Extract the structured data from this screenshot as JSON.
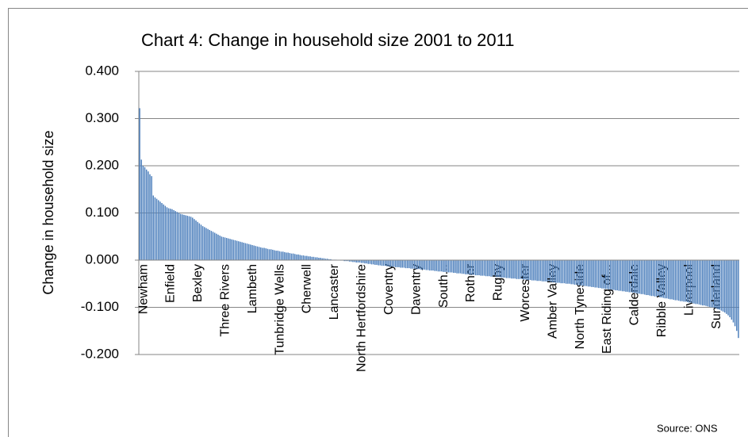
{
  "chart_data": {
    "type": "bar",
    "title": "Chart 4: Change in household size 2001 to 2011",
    "y_label": "Change in household size",
    "annotation": "Source: ONS",
    "color": "#4f81bd",
    "grid": true,
    "ylim": [
      -0.2,
      0.4
    ],
    "yticks": [
      {
        "value": 0.4,
        "label": "0.400"
      },
      {
        "value": 0.3,
        "label": "0.300"
      },
      {
        "value": 0.2,
        "label": "0.200"
      },
      {
        "value": 0.1,
        "label": "0.100"
      },
      {
        "value": 0,
        "label": "0.000"
      },
      {
        "value": -0.1,
        "label": "-0.100"
      },
      {
        "value": -0.2,
        "label": "-0.200"
      }
    ],
    "categories": [
      "Newham",
      null,
      null,
      null,
      null,
      null,
      null,
      null,
      null,
      null,
      null,
      null,
      null,
      null,
      null,
      null,
      "Enfield",
      null,
      null,
      null,
      null,
      null,
      null,
      null,
      null,
      null,
      null,
      null,
      null,
      null,
      null,
      null,
      "Bexley",
      null,
      null,
      null,
      null,
      null,
      null,
      null,
      null,
      null,
      null,
      null,
      null,
      null,
      null,
      null,
      "Three Rivers",
      null,
      null,
      null,
      null,
      null,
      null,
      null,
      null,
      null,
      null,
      null,
      null,
      null,
      null,
      null,
      "Lambeth",
      null,
      null,
      null,
      null,
      null,
      null,
      null,
      null,
      null,
      null,
      null,
      null,
      null,
      null,
      null,
      "Tunbridge Wells",
      null,
      null,
      null,
      null,
      null,
      null,
      null,
      null,
      null,
      null,
      null,
      null,
      null,
      null,
      null,
      "Cherwell",
      null,
      null,
      null,
      null,
      null,
      null,
      null,
      null,
      null,
      null,
      null,
      null,
      null,
      null,
      null,
      "Lancaster",
      null,
      null,
      null,
      null,
      null,
      null,
      null,
      null,
      null,
      null,
      null,
      null,
      null,
      null,
      null,
      "North Hertfordshire",
      null,
      null,
      null,
      null,
      null,
      null,
      null,
      null,
      null,
      null,
      null,
      null,
      null,
      null,
      null,
      "Coventry",
      null,
      null,
      null,
      null,
      null,
      null,
      null,
      null,
      null,
      null,
      null,
      null,
      null,
      null,
      null,
      "Daventry",
      null,
      null,
      null,
      null,
      null,
      null,
      null,
      null,
      null,
      null,
      null,
      null,
      null,
      null,
      null,
      "South...",
      null,
      null,
      null,
      null,
      null,
      null,
      null,
      null,
      null,
      null,
      null,
      null,
      null,
      null,
      null,
      "Rother",
      null,
      null,
      null,
      null,
      null,
      null,
      null,
      null,
      null,
      null,
      null,
      null,
      null,
      null,
      null,
      "Rugby",
      null,
      null,
      null,
      null,
      null,
      null,
      null,
      null,
      null,
      null,
      null,
      null,
      null,
      null,
      null,
      "Worcester",
      null,
      null,
      null,
      null,
      null,
      null,
      null,
      null,
      null,
      null,
      null,
      null,
      null,
      null,
      null,
      "Amber Valley",
      null,
      null,
      null,
      null,
      null,
      null,
      null,
      null,
      null,
      null,
      null,
      null,
      null,
      null,
      null,
      "North Tyneside",
      null,
      null,
      null,
      null,
      null,
      null,
      null,
      null,
      null,
      null,
      null,
      null,
      null,
      null,
      null,
      "East Riding of...",
      null,
      null,
      null,
      null,
      null,
      null,
      null,
      null,
      null,
      null,
      null,
      null,
      null,
      null,
      null,
      "Calderdale",
      null,
      null,
      null,
      null,
      null,
      null,
      null,
      null,
      null,
      null,
      null,
      null,
      null,
      null,
      null,
      "Ribble Valley",
      null,
      null,
      null,
      null,
      null,
      null,
      null,
      null,
      null,
      null,
      null,
      null,
      null,
      null,
      null,
      "Liverpool",
      null,
      null,
      null,
      null,
      null,
      null,
      null,
      null,
      null,
      null,
      null,
      null,
      null,
      null,
      null,
      "Sunderland",
      null,
      null,
      null,
      null,
      null,
      null,
      null,
      null,
      null,
      null,
      null,
      null,
      null,
      null,
      null
    ],
    "values": [
      0.322,
      0.213,
      0.2,
      0.197,
      0.192,
      0.188,
      0.182,
      0.178,
      0.137,
      0.133,
      0.13,
      0.127,
      0.124,
      0.121,
      0.118,
      0.115,
      0.112,
      0.11,
      0.109,
      0.108,
      0.106,
      0.104,
      0.102,
      0.1,
      0.098,
      0.097,
      0.096,
      0.095,
      0.094,
      0.093,
      0.092,
      0.09,
      0.087,
      0.084,
      0.081,
      0.078,
      0.075,
      0.072,
      0.07,
      0.068,
      0.066,
      0.064,
      0.062,
      0.06,
      0.058,
      0.056,
      0.054,
      0.052,
      0.05,
      0.049,
      0.048,
      0.047,
      0.046,
      0.045,
      0.044,
      0.043,
      0.042,
      0.041,
      0.04,
      0.039,
      0.038,
      0.037,
      0.036,
      0.035,
      0.034,
      0.033,
      0.032,
      0.031,
      0.03,
      0.029,
      0.028,
      0.027,
      0.026,
      0.026,
      0.025,
      0.024,
      0.023,
      0.023,
      0.022,
      0.021,
      0.02,
      0.02,
      0.019,
      0.018,
      0.018,
      0.017,
      0.016,
      0.016,
      0.015,
      0.014,
      0.014,
      0.013,
      0.012,
      0.012,
      0.011,
      0.01,
      0.01,
      0.009,
      0.009,
      0.008,
      0.008,
      0.007,
      0.007,
      0.006,
      0.006,
      0.005,
      0.005,
      0.004,
      0.004,
      0.003,
      0.003,
      0.002,
      0.002,
      0.001,
      0.001,
      0.001,
      0.0,
      0.0,
      -0.001,
      -0.001,
      -0.002,
      -0.002,
      -0.002,
      -0.003,
      -0.003,
      -0.004,
      -0.004,
      -0.005,
      -0.005,
      -0.005,
      -0.006,
      -0.006,
      -0.007,
      -0.007,
      -0.008,
      -0.008,
      -0.009,
      -0.009,
      -0.01,
      -0.01,
      -0.011,
      -0.011,
      -0.012,
      -0.012,
      -0.012,
      -0.013,
      -0.013,
      -0.014,
      -0.014,
      -0.014,
      -0.015,
      -0.015,
      -0.015,
      -0.016,
      -0.016,
      -0.016,
      -0.017,
      -0.017,
      -0.017,
      -0.018,
      -0.018,
      -0.018,
      -0.019,
      -0.019,
      -0.019,
      -0.02,
      -0.02,
      -0.02,
      -0.021,
      -0.021,
      -0.022,
      -0.022,
      -0.022,
      -0.023,
      -0.023,
      -0.024,
      -0.024,
      -0.024,
      -0.025,
      -0.025,
      -0.025,
      -0.026,
      -0.026,
      -0.026,
      -0.027,
      -0.027,
      -0.028,
      -0.028,
      -0.028,
      -0.029,
      -0.029,
      -0.03,
      -0.03,
      -0.03,
      -0.031,
      -0.031,
      -0.031,
      -0.032,
      -0.032,
      -0.032,
      -0.033,
      -0.033,
      -0.033,
      -0.034,
      -0.034,
      -0.034,
      -0.035,
      -0.035,
      -0.035,
      -0.036,
      -0.036,
      -0.036,
      -0.037,
      -0.037,
      -0.037,
      -0.038,
      -0.038,
      -0.038,
      -0.039,
      -0.039,
      -0.039,
      -0.04,
      -0.04,
      -0.04,
      -0.04,
      -0.041,
      -0.041,
      -0.042,
      -0.042,
      -0.042,
      -0.043,
      -0.043,
      -0.043,
      -0.044,
      -0.044,
      -0.044,
      -0.045,
      -0.045,
      -0.045,
      -0.046,
      -0.046,
      -0.046,
      -0.047,
      -0.047,
      -0.048,
      -0.048,
      -0.048,
      -0.049,
      -0.049,
      -0.049,
      -0.05,
      -0.05,
      -0.05,
      -0.051,
      -0.051,
      -0.052,
      -0.052,
      -0.053,
      -0.053,
      -0.054,
      -0.054,
      -0.055,
      -0.055,
      -0.056,
      -0.056,
      -0.057,
      -0.057,
      -0.058,
      -0.058,
      -0.059,
      -0.059,
      -0.06,
      -0.06,
      -0.061,
      -0.061,
      -0.062,
      -0.062,
      -0.063,
      -0.063,
      -0.064,
      -0.064,
      -0.065,
      -0.065,
      -0.066,
      -0.066,
      -0.067,
      -0.067,
      -0.068,
      -0.068,
      -0.069,
      -0.069,
      -0.07,
      -0.071,
      -0.071,
      -0.072,
      -0.072,
      -0.073,
      -0.074,
      -0.074,
      -0.075,
      -0.076,
      -0.076,
      -0.077,
      -0.077,
      -0.078,
      -0.079,
      -0.079,
      -0.08,
      -0.081,
      -0.081,
      -0.082,
      -0.083,
      -0.083,
      -0.084,
      -0.085,
      -0.085,
      -0.086,
      -0.087,
      -0.087,
      -0.088,
      -0.088,
      -0.089,
      -0.09,
      -0.09,
      -0.091,
      -0.092,
      -0.093,
      -0.093,
      -0.094,
      -0.095,
      -0.096,
      -0.096,
      -0.097,
      -0.098,
      -0.099,
      -0.1,
      -0.1,
      -0.101,
      -0.102,
      -0.104,
      -0.105,
      -0.107,
      -0.109,
      -0.111,
      -0.114,
      -0.117,
      -0.121,
      -0.126,
      -0.132,
      -0.14,
      -0.15,
      -0.165
    ]
  }
}
